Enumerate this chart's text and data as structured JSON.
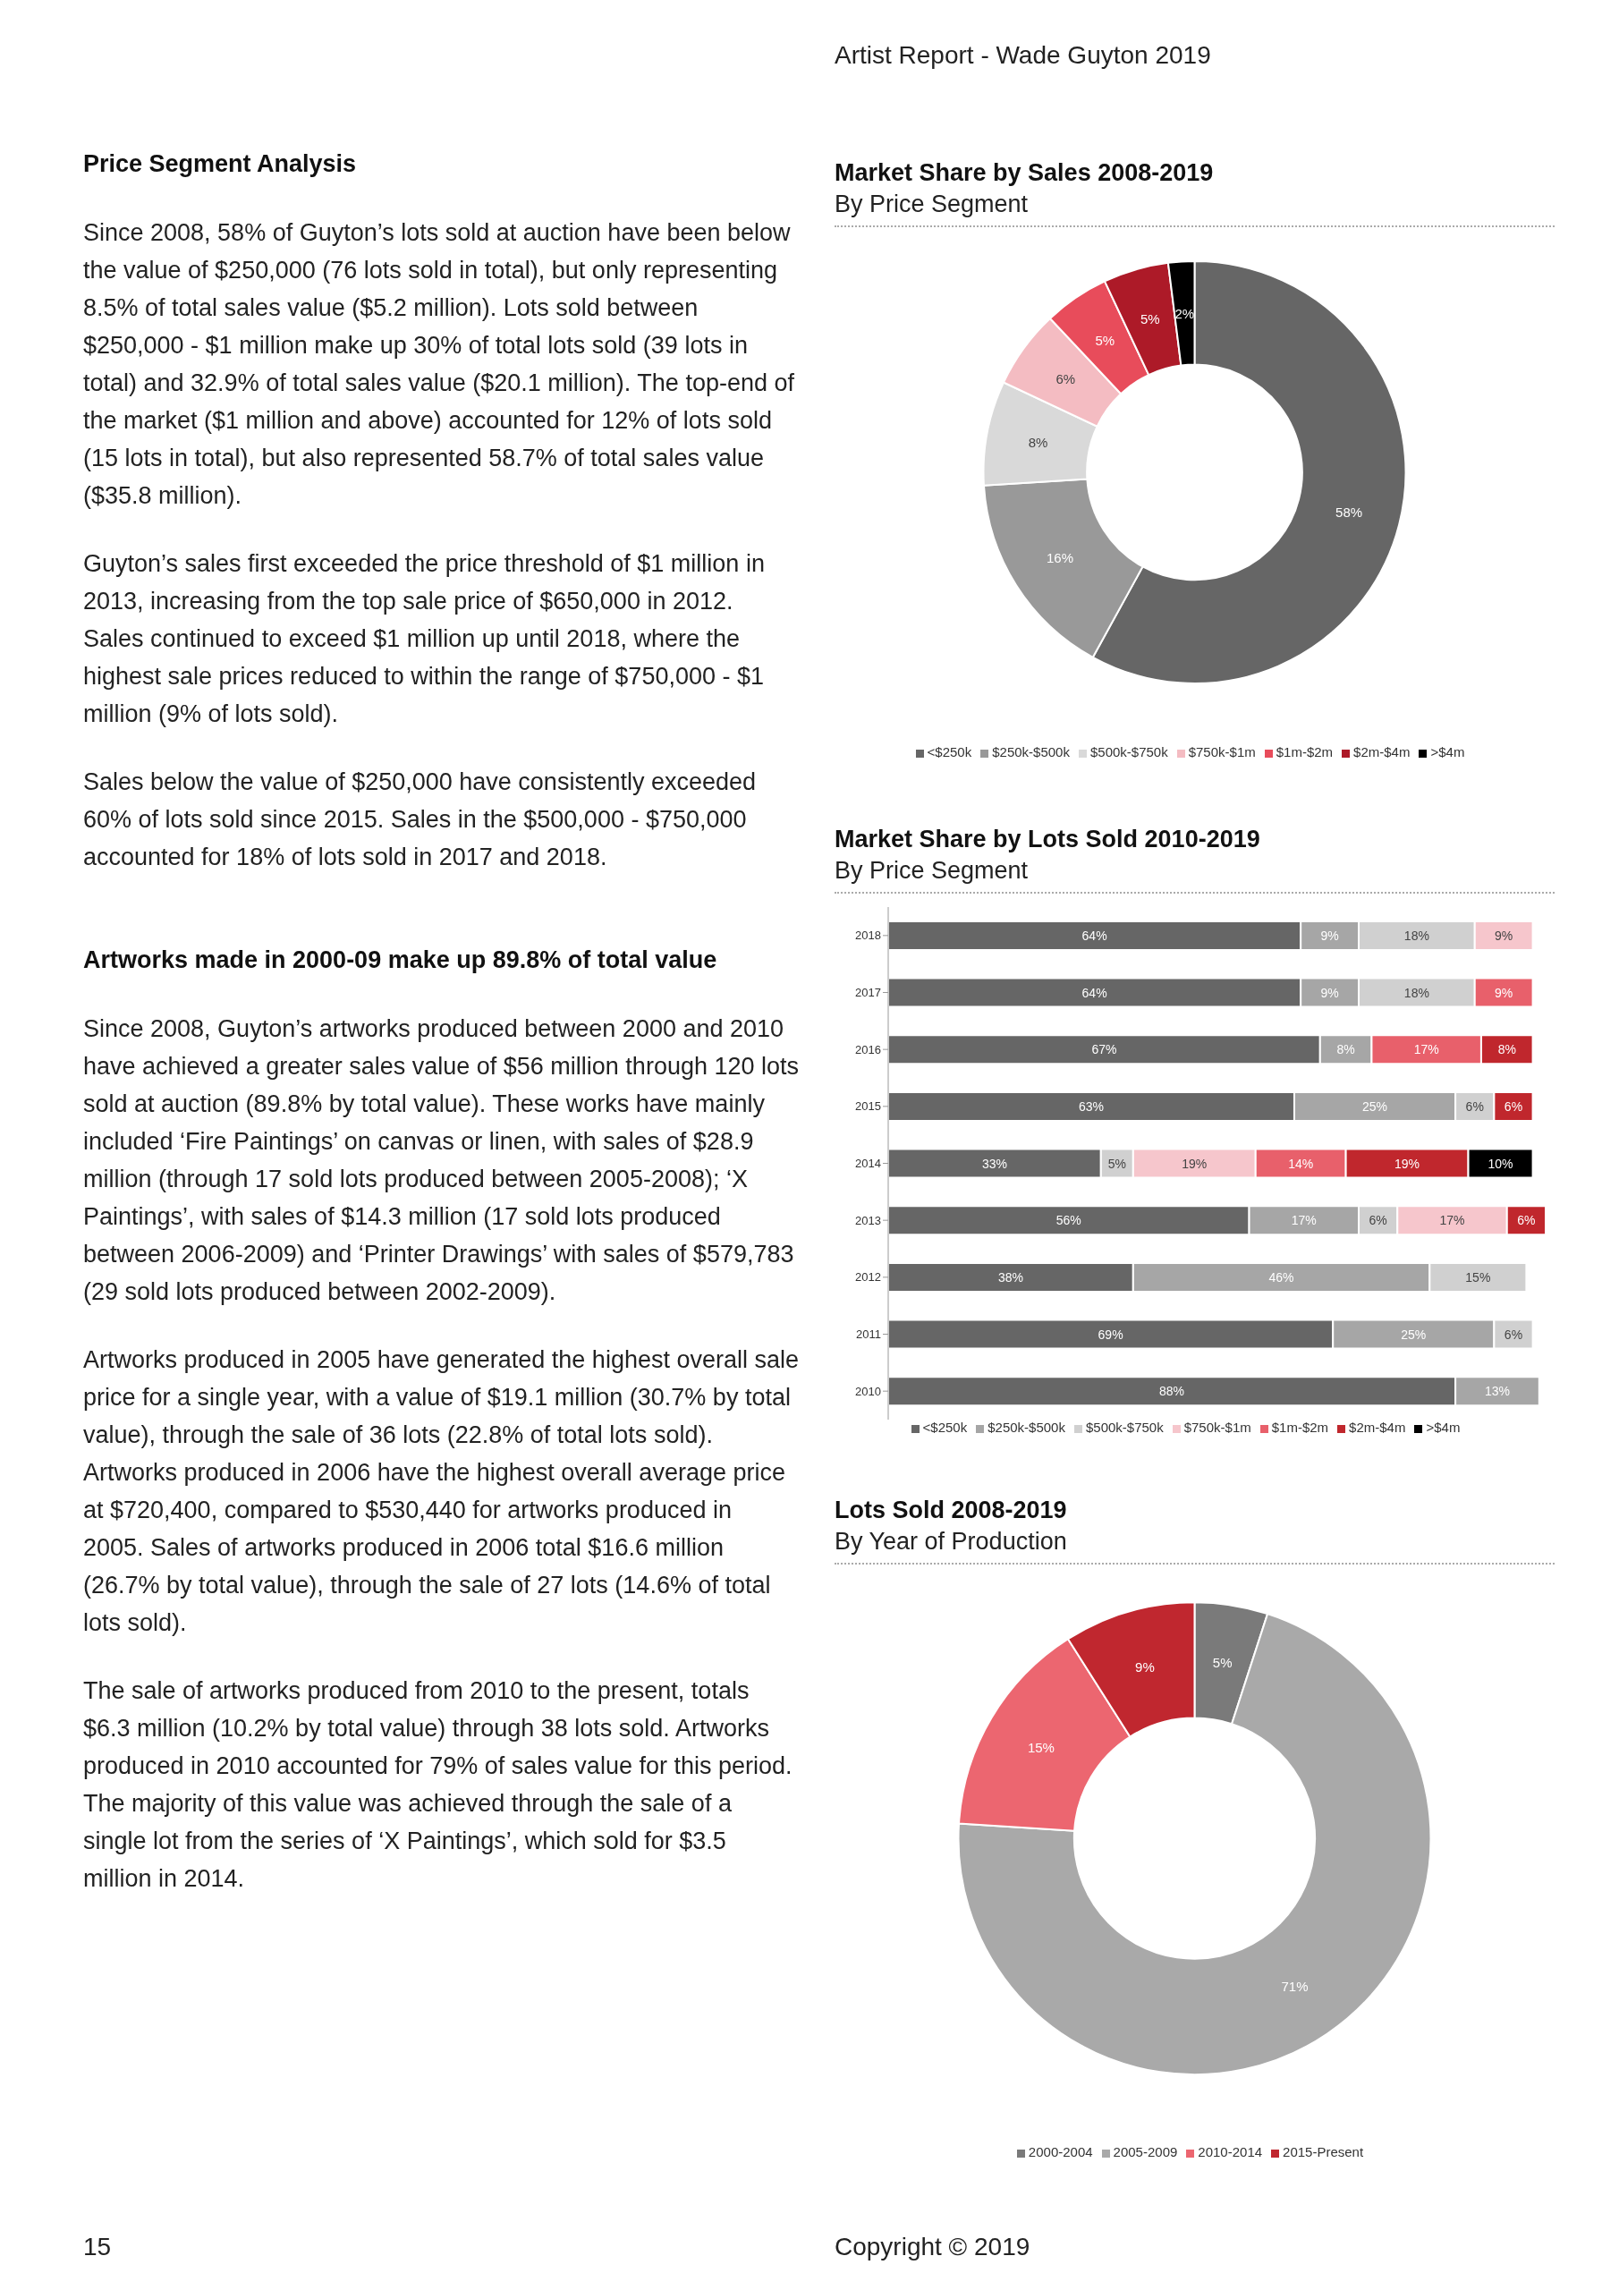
{
  "chart_data": [
    {
      "type": "other",
      "annotations": [
        "Artist Report - Wade Guyton 2019",
        "15",
        "Copyright © 2019"
      ]
    },
    {
      "type": "other",
      "title": "Price Segment Analysis",
      "annotations": [
        "Since 2008, 58% of Guyton’s lots sold at auction have been below the value of $250,000 (76 lots sold in total), but only representing 8.5% of total sales value ($5.2 million). Lots sold between $250,000 - $1 million make up 30% of total lots sold (39 lots in total) and 32.9% of total sales value ($20.1 million). The top-end of the market ($1 million and above) accounted for 12% of lots sold (15 lots in total), but also represented 58.7% of total sales value ($35.8 million).",
        "Guyton’s sales first exceeded the price threshold of $1 million in 2013, increasing from the top sale price of $650,000 in 2012. Sales continued to exceed $1 million up until 2018, where the highest sale prices reduced to within the range of $750,000 - $1 million (9% of lots sold).",
        "Sales below the value of $250,000 have consistently exceeded 60% of lots sold since 2015. Sales in the $500,000 - $750,000 accounted for 18% of lots sold in 2017 and 2018."
      ]
    },
    {
      "type": "other",
      "title": "Artworks made in 2000-09 make up 89.8% of total value",
      "annotations": [
        "Since 2008, Guyton’s artworks produced between 2000 and 2010 have achieved a greater sales value of $56 million through 120 lots sold at auction (89.8% by total value). These works have mainly included ‘Fire Paintings’ on canvas or linen, with sales of $28.9 million (through 17 sold lots produced between 2005-2008); ‘X Paintings’, with sales of $14.3 million (17 sold lots produced between 2006-2009) and ‘Printer Drawings’ with sales of $579,783 (29 sold lots produced between 2002-2009).",
        "Artworks produced in 2005 have generated the highest overall sale price for a single year, with a value of $19.1 million (30.7% by total value), through the sale of 36 lots (22.8% of total lots sold). Artworks produced in 2006 have the highest overall average price at $720,400, compared to $530,440 for artworks produced in 2005. Sales of artworks produced in 2006 total $16.6 million (26.7% by total value), through the sale of 27 lots (14.6% of total lots sold).",
        "The sale of artworks produced from 2010 to the present, totals $6.3 million (10.2% by total value) through 38 lots sold. Artworks produced in 2010 accounted for 79% of sales value for this period. The majority of this value was achieved through the sale of a single lot from the series of ‘X Paintings’, which sold for $3.5 million in 2014."
      ]
    },
    {
      "type": "donut",
      "title": "Market Share by Sales 2008-2019",
      "subtitle": "By Price Segment",
      "legend": "bottom",
      "categories": [
        "<$250k",
        "$250k-$500k",
        "$500k-$750k",
        "$750k-$1m",
        "$1m-$2m",
        "$2m-$4m",
        ">$4m"
      ],
      "values": [
        58,
        16,
        8,
        6,
        5,
        5,
        2
      ],
      "value_labels": [
        "58%",
        "16%",
        "8%",
        "6%",
        "5%",
        "5%",
        "2%"
      ],
      "colors": [
        "#666666",
        "#999999",
        "#d9d9d9",
        "#f4bcc2",
        "#e84c5b",
        "#ad1a28",
        "#000000"
      ]
    },
    {
      "type": "bar",
      "orientation": "horizontal",
      "stacked": true,
      "title": "Market Share by Lots Sold 2010-2019",
      "subtitle": "By Price Segment",
      "legend": "bottom",
      "tick_labels": "y",
      "categories": [
        "2018",
        "2017",
        "2016",
        "2015",
        "2014",
        "2013",
        "2012",
        "2011",
        "2010"
      ],
      "series": [
        {
          "name": "<$250k",
          "color": "#666666",
          "values": [
            64,
            64,
            67,
            63,
            33,
            56,
            38,
            69,
            88
          ],
          "value_labels": [
            "64%",
            "64%",
            "67%",
            "63%",
            "33%",
            "56%",
            "38%",
            "69%",
            "88%"
          ]
        },
        {
          "name": "$250k-$500k",
          "color": "#a6a6a6",
          "values": [
            9,
            9,
            8,
            25,
            null,
            17,
            46,
            25,
            13
          ],
          "value_labels": [
            "9%",
            "9%",
            "8%",
            "25%",
            null,
            "17%",
            "46%",
            "25%",
            "13%"
          ]
        },
        {
          "name": "$500k-$750k",
          "color": "#d0d0d0",
          "values": [
            18,
            18,
            null,
            6,
            5,
            6,
            15,
            6,
            null
          ],
          "value_labels": [
            "18%",
            "18%",
            null,
            "6%",
            "5%",
            "6%",
            "15%",
            "6%",
            null
          ]
        },
        {
          "name": "$750k-$1m",
          "color": "#f6c6cc",
          "values": [
            9,
            null,
            null,
            null,
            19,
            17,
            null,
            null,
            null
          ],
          "value_labels": [
            "9%",
            null,
            null,
            null,
            "19%",
            "17%",
            null,
            null,
            null
          ]
        },
        {
          "name": "$1m-$2m",
          "color": "#e8606b",
          "values": [
            null,
            9,
            17,
            null,
            14,
            null,
            null,
            null,
            null
          ],
          "value_labels": [
            null,
            "9%",
            "17%",
            null,
            "14%",
            null,
            null,
            null,
            null
          ]
        },
        {
          "name": "$2m-$4m",
          "color": "#c0272d",
          "values": [
            null,
            null,
            8,
            6,
            19,
            6,
            null,
            null,
            null
          ],
          "value_labels": [
            null,
            null,
            "8%",
            "6%",
            "19%",
            "6%",
            null,
            null,
            null
          ]
        },
        {
          "name": ">$4m",
          "color": "#000000",
          "values": [
            null,
            null,
            null,
            null,
            10,
            null,
            null,
            null,
            null
          ],
          "value_labels": [
            null,
            null,
            null,
            null,
            "10%",
            null,
            null,
            null,
            null
          ]
        }
      ]
    },
    {
      "type": "donut",
      "title": "Lots Sold 2008-2019",
      "subtitle": "By Year of Production",
      "legend": "bottom",
      "categories": [
        "2000-2004",
        "2005-2009",
        "2010-2014",
        "2015-Present"
      ],
      "values": [
        5,
        71,
        15,
        9
      ],
      "value_labels": [
        "5%",
        "71%",
        "15%",
        "9%"
      ],
      "colors": [
        "#7a7a7a",
        "#a9a9a9",
        "#ec6670",
        "#c0272f"
      ]
    }
  ]
}
